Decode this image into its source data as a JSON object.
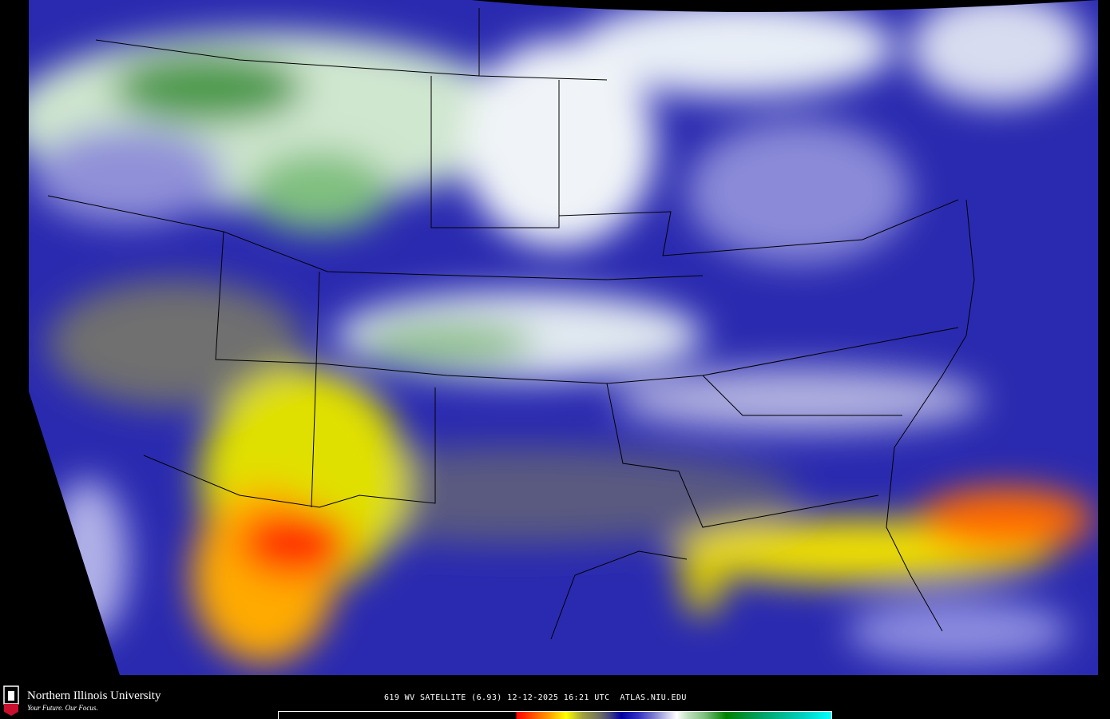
{
  "map": {
    "type": "water vapor satellite imagery",
    "region": "contiguous United States",
    "colors": {
      "dry": "#ff0000",
      "moist": "#008000",
      "mid": "#0000a0",
      "background": "#000000"
    }
  },
  "footer": {
    "logo": {
      "name": "Northern Illinois University",
      "tagline": "Your Future. Our Focus.",
      "mark": "NIU"
    },
    "caption": "619 WV SATELLITE (6.93) 12-12-2025 16:21 UTC  ATLAS.NIU.EDU"
  }
}
